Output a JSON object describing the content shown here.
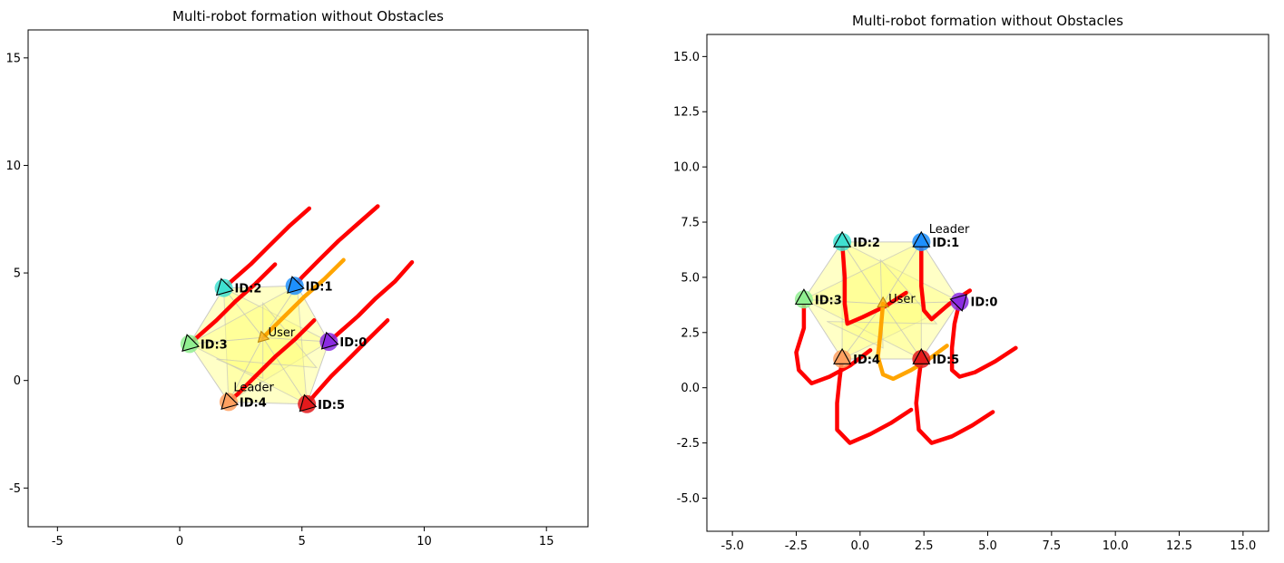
{
  "chart_data": [
    {
      "type": "scatter",
      "title": "Multi-robot formation without Obstacles",
      "xlim": [
        -6.2,
        16.7
      ],
      "ylim": [
        -6.8,
        16.3
      ],
      "xticks": [
        "-5",
        "0",
        "5",
        "10",
        "15"
      ],
      "xtick_values": [
        -5,
        0,
        5,
        10,
        15
      ],
      "yticks": [
        "-5",
        "0",
        "5",
        "10",
        "15"
      ],
      "ytick_values": [
        -5,
        0,
        5,
        10,
        15
      ],
      "grid": false,
      "user": {
        "label": "User",
        "x": 3.4,
        "y": 2.0,
        "heading_deg": 225,
        "color": "#FFA500",
        "path": [
          [
            6.7,
            5.6
          ],
          [
            5.9,
            4.7
          ],
          [
            5.1,
            3.9
          ],
          [
            4.3,
            3.0
          ],
          [
            3.5,
            2.1
          ]
        ]
      },
      "leader": {
        "label": "Leader",
        "x": 2.2,
        "y": -0.5
      },
      "formation": {
        "color": "#FFFF80",
        "outline": "#BDBDBD",
        "hex": [
          [
            6.1,
            1.8
          ],
          [
            4.8,
            4.4
          ],
          [
            1.8,
            4.3
          ],
          [
            0.4,
            1.7
          ],
          [
            2.0,
            -1.0
          ],
          [
            5.2,
            -1.1
          ]
        ],
        "inner": [
          [
            3.4,
            3.6
          ],
          [
            5.6,
            0.6
          ],
          [
            1.5,
            1.0
          ],
          [
            3.4,
            0.1
          ]
        ]
      },
      "robots": [
        {
          "id": "ID:0",
          "x": 6.1,
          "y": 1.8,
          "heading_deg": 225,
          "color": "#8B2BE2",
          "path": [
            [
              9.5,
              5.5
            ],
            [
              8.8,
              4.6
            ],
            [
              8.0,
              3.8
            ],
            [
              7.3,
              3.0
            ],
            [
              6.6,
              2.3
            ],
            [
              6.1,
              1.8
            ]
          ]
        },
        {
          "id": "ID:1",
          "x": 4.7,
          "y": 4.4,
          "heading_deg": 225,
          "color": "#1E90FF",
          "path": [
            [
              8.1,
              8.1
            ],
            [
              7.3,
              7.3
            ],
            [
              6.5,
              6.5
            ],
            [
              5.7,
              5.6
            ],
            [
              5.0,
              4.8
            ],
            [
              4.7,
              4.4
            ]
          ]
        },
        {
          "id": "ID:2",
          "x": 1.8,
          "y": 4.3,
          "heading_deg": 225,
          "color": "#40E0D0",
          "path": [
            [
              5.3,
              8.0
            ],
            [
              4.5,
              7.2
            ],
            [
              3.7,
              6.3
            ],
            [
              2.9,
              5.4
            ],
            [
              2.2,
              4.7
            ],
            [
              1.8,
              4.3
            ]
          ]
        },
        {
          "id": "ID:3",
          "x": 0.4,
          "y": 1.7,
          "heading_deg": 225,
          "color": "#90EE90",
          "path": [
            [
              3.9,
              5.4
            ],
            [
              3.1,
              4.5
            ],
            [
              2.3,
              3.7
            ],
            [
              1.5,
              2.8
            ],
            [
              0.8,
              2.1
            ],
            [
              0.4,
              1.7
            ]
          ]
        },
        {
          "id": "ID:4",
          "x": 2.0,
          "y": -1.0,
          "heading_deg": 225,
          "color": "#FFA060",
          "path": [
            [
              5.5,
              2.8
            ],
            [
              4.7,
              1.9
            ],
            [
              3.9,
              1.1
            ],
            [
              3.1,
              0.2
            ],
            [
              2.4,
              -0.6
            ],
            [
              2.0,
              -1.0
            ]
          ]
        },
        {
          "id": "ID:5",
          "x": 5.2,
          "y": -1.1,
          "heading_deg": 225,
          "color": "#E31A1C",
          "path": [
            [
              8.5,
              2.8
            ],
            [
              7.7,
              1.9
            ],
            [
              7.0,
              1.1
            ],
            [
              6.2,
              0.2
            ],
            [
              5.5,
              -0.7
            ],
            [
              5.2,
              -1.1
            ]
          ]
        }
      ]
    },
    {
      "type": "scatter",
      "title": "Multi-robot formation without Obstacles",
      "xlim": [
        -6.0,
        16.0
      ],
      "ylim": [
        -6.5,
        16.0
      ],
      "xticks": [
        "-5.0",
        "-2.5",
        "0.0",
        "2.5",
        "5.0",
        "7.5",
        "10.0",
        "12.5",
        "15.0"
      ],
      "xtick_values": [
        -5,
        -2.5,
        0,
        2.5,
        5,
        7.5,
        10,
        12.5,
        15
      ],
      "yticks": [
        "-5.0",
        "-2.5",
        "0.0",
        "2.5",
        "5.0",
        "7.5",
        "10.0",
        "12.5",
        "15.0"
      ],
      "ytick_values": [
        -5,
        -2.5,
        0,
        2.5,
        5,
        7.5,
        10,
        12.5,
        15
      ],
      "grid": false,
      "user": {
        "label": "User",
        "x": 0.9,
        "y": 3.8,
        "heading_deg": 90,
        "color": "#FFA500",
        "path": [
          [
            3.4,
            1.9
          ],
          [
            2.7,
            1.3
          ],
          [
            2.0,
            0.8
          ],
          [
            1.3,
            0.4
          ],
          [
            0.9,
            0.6
          ],
          [
            0.7,
            1.4
          ],
          [
            0.8,
            2.5
          ],
          [
            0.9,
            3.8
          ]
        ]
      },
      "leader": {
        "label": "Leader",
        "x": 2.7,
        "y": 7.0
      },
      "formation": {
        "color": "#FFFF80",
        "outline": "#BDBDBD",
        "hex": [
          [
            3.9,
            3.9
          ],
          [
            2.4,
            6.6
          ],
          [
            -0.7,
            6.6
          ],
          [
            -2.2,
            4.0
          ],
          [
            -0.7,
            1.3
          ],
          [
            2.4,
            1.3
          ]
        ],
        "inner": [
          [
            0.8,
            5.8
          ],
          [
            3.0,
            2.9
          ],
          [
            -1.3,
            3.0
          ],
          [
            0.9,
            1.8
          ]
        ]
      },
      "robots": [
        {
          "id": "ID:0",
          "x": 3.9,
          "y": 3.9,
          "heading_deg": 45,
          "color": "#8B2BE2",
          "path": [
            [
              6.1,
              1.8
            ],
            [
              5.3,
              1.2
            ],
            [
              4.5,
              0.7
            ],
            [
              3.9,
              0.5
            ],
            [
              3.6,
              0.8
            ],
            [
              3.6,
              1.8
            ],
            [
              3.7,
              2.9
            ],
            [
              3.9,
              3.9
            ]
          ]
        },
        {
          "id": "ID:1",
          "x": 2.4,
          "y": 6.6,
          "heading_deg": 90,
          "color": "#1E90FF",
          "path": [
            [
              4.3,
              4.4
            ],
            [
              3.5,
              3.8
            ],
            [
              2.8,
              3.1
            ],
            [
              2.5,
              3.5
            ],
            [
              2.4,
              4.6
            ],
            [
              2.4,
              5.6
            ],
            [
              2.4,
              6.6
            ]
          ]
        },
        {
          "id": "ID:2",
          "x": -0.7,
          "y": 6.6,
          "heading_deg": 90,
          "color": "#40E0D0",
          "path": [
            [
              1.8,
              4.3
            ],
            [
              1.0,
              3.7
            ],
            [
              0.1,
              3.2
            ],
            [
              -0.5,
              2.9
            ],
            [
              -0.6,
              3.8
            ],
            [
              -0.6,
              5.0
            ],
            [
              -0.7,
              6.6
            ]
          ]
        },
        {
          "id": "ID:3",
          "x": -2.2,
          "y": 4.0,
          "heading_deg": 90,
          "color": "#90EE90",
          "path": [
            [
              0.4,
              1.7
            ],
            [
              -0.4,
              1.0
            ],
            [
              -1.2,
              0.5
            ],
            [
              -1.9,
              0.2
            ],
            [
              -2.4,
              0.8
            ],
            [
              -2.5,
              1.6
            ],
            [
              -2.2,
              2.7
            ],
            [
              -2.2,
              4.0
            ]
          ]
        },
        {
          "id": "ID:4",
          "x": -0.7,
          "y": 1.3,
          "heading_deg": 90,
          "color": "#FFA060",
          "path": [
            [
              2.0,
              -1.0
            ],
            [
              1.2,
              -1.6
            ],
            [
              0.4,
              -2.1
            ],
            [
              -0.4,
              -2.5
            ],
            [
              -0.9,
              -1.9
            ],
            [
              -0.9,
              -0.7
            ],
            [
              -0.8,
              0.4
            ],
            [
              -0.7,
              1.3
            ]
          ]
        },
        {
          "id": "ID:5",
          "x": 2.4,
          "y": 1.3,
          "heading_deg": 90,
          "color": "#E31A1C",
          "path": [
            [
              5.2,
              -1.1
            ],
            [
              4.4,
              -1.7
            ],
            [
              3.6,
              -2.2
            ],
            [
              2.8,
              -2.5
            ],
            [
              2.3,
              -1.9
            ],
            [
              2.2,
              -0.7
            ],
            [
              2.3,
              0.4
            ],
            [
              2.4,
              1.3
            ]
          ]
        }
      ]
    }
  ]
}
